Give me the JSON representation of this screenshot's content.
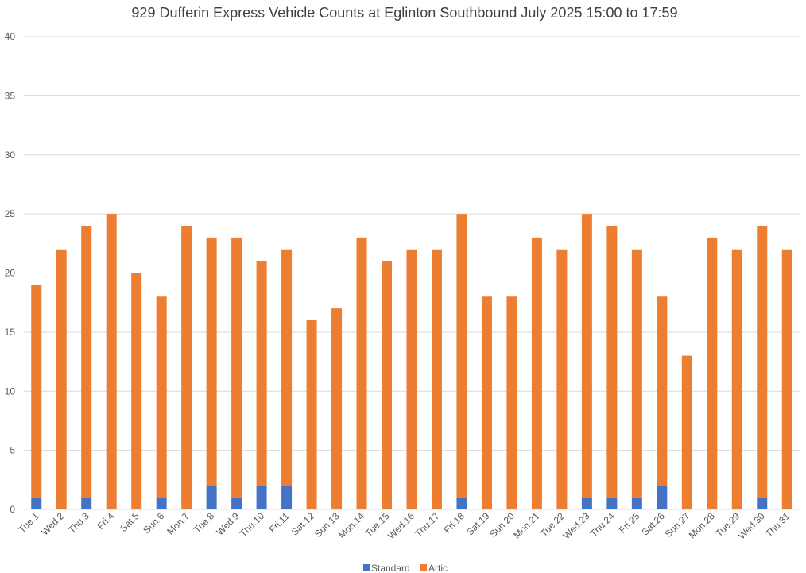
{
  "chart_data": {
    "type": "bar",
    "stacked": true,
    "title": "929 Dufferin Express Vehicle Counts at Eglinton Southbound July 2025  15:00 to 17:59",
    "xlabel": "",
    "ylabel": "",
    "ylim": [
      0,
      40
    ],
    "yticks": [
      "0",
      "5",
      "10",
      "15",
      "20",
      "25",
      "30",
      "35",
      "40"
    ],
    "grid": true,
    "legend": "bottom",
    "categories": [
      "Tue.1",
      "Wed.2",
      "Thu.3",
      "Fri.4",
      "Sat.5",
      "Sun.6",
      "Mon.7",
      "Tue.8",
      "Wed.9",
      "Thu.10",
      "Fri.11",
      "Sat.12",
      "Sun.13",
      "Mon.14",
      "Tue.15",
      "Wed.16",
      "Thu.17",
      "Fri.18",
      "Sat.19",
      "Sun.20",
      "Mon.21",
      "Tue.22",
      "Wed.23",
      "Thu.24",
      "Fri.25",
      "Sat.26",
      "Sun.27",
      "Mon.28",
      "Tue.29",
      "Wed.30",
      "Thu.31"
    ],
    "series": [
      {
        "name": "Standard",
        "color": "#4472c4",
        "values": [
          1,
          0,
          1,
          0,
          0,
          1,
          0,
          2,
          1,
          2,
          2,
          0,
          0,
          0,
          0,
          0,
          0,
          1,
          0,
          0,
          0,
          0,
          1,
          1,
          1,
          2,
          0,
          0,
          0,
          1,
          0
        ]
      },
      {
        "name": "Artic",
        "color": "#ed7d31",
        "values": [
          18,
          22,
          23,
          25,
          20,
          17,
          24,
          21,
          22,
          19,
          20,
          16,
          17,
          23,
          21,
          22,
          22,
          24,
          18,
          18,
          23,
          22,
          24,
          23,
          21,
          16,
          13,
          23,
          22,
          23,
          22
        ]
      }
    ]
  }
}
